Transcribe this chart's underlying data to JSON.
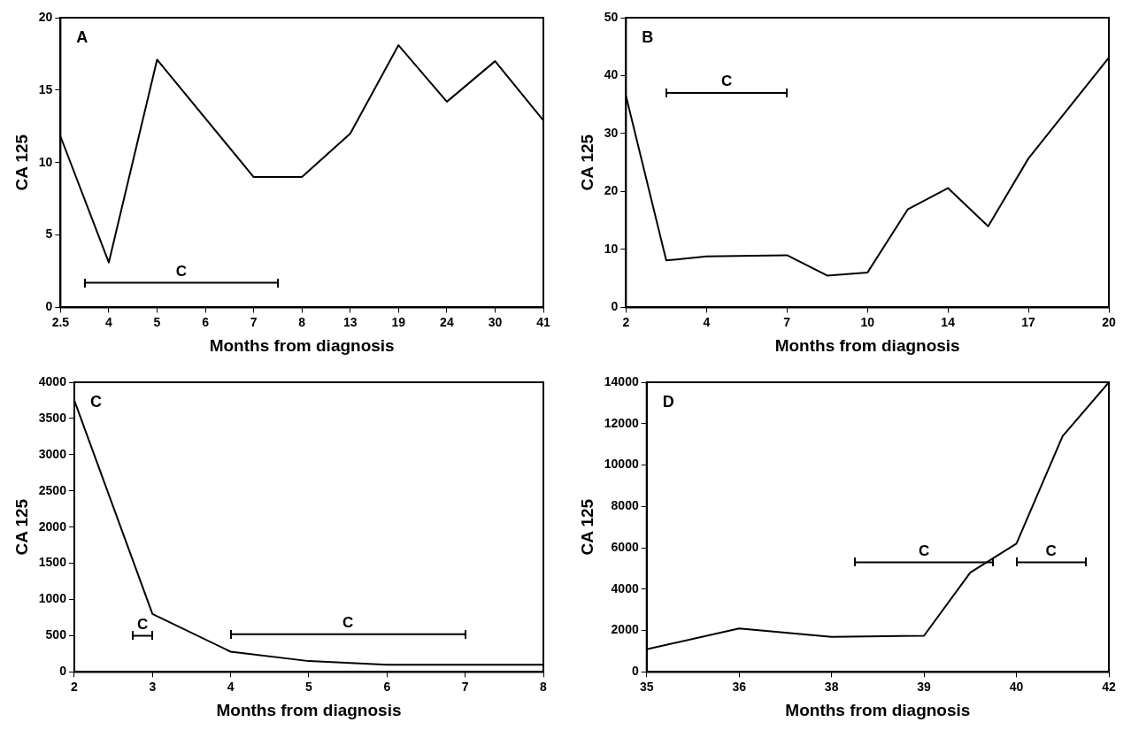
{
  "chart_data": [
    {
      "type": "line",
      "title": "A",
      "xlabel": "Months from diagnosis",
      "ylabel": "CA 125",
      "categories": [
        "2.5",
        null,
        "4",
        null,
        "5",
        null,
        "6",
        null,
        "7",
        null,
        "8",
        null,
        "13",
        null,
        "19",
        null,
        "24",
        null,
        "30",
        null,
        "41"
      ],
      "ylim": [
        0,
        20
      ],
      "yticks": [
        0,
        5,
        10,
        15,
        20
      ],
      "series": [
        {
          "color": "#000000",
          "marker": "none",
          "values": [
            11.8,
            null,
            3.1,
            null,
            17.1,
            null,
            null,
            null,
            9.0,
            null,
            9.0,
            null,
            12.0,
            null,
            18.1,
            null,
            14.2,
            null,
            17.0,
            null,
            12.9
          ]
        },
        {
          "name": "C",
          "color": "#000000",
          "marker": "none",
          "values": [
            null,
            1.7,
            null,
            null,
            null,
            null,
            null,
            null,
            null,
            1.7,
            null,
            null,
            null,
            null,
            null,
            null,
            null,
            null,
            null,
            null,
            null
          ]
        }
      ]
    },
    {
      "type": "line",
      "title": "B",
      "xlabel": "Months from diagnosis",
      "ylabel": "CA 125",
      "categories": [
        "2",
        null,
        "4",
        null,
        "7",
        null,
        "10",
        null,
        "14",
        null,
        "17",
        null,
        "20"
      ],
      "ylim": [
        0,
        50
      ],
      "yticks": [
        0,
        10,
        20,
        30,
        40,
        50
      ],
      "series": [
        {
          "color": "#000000",
          "marker": "none",
          "values": [
            36.5,
            8.1,
            8.8,
            null,
            9.0,
            5.5,
            6.0,
            16.9,
            20.6,
            14.0,
            25.7,
            null,
            43.1
          ]
        },
        {
          "name": "C",
          "color": "#000000",
          "marker": "none",
          "values": [
            null,
            37,
            null,
            null,
            37,
            null,
            null,
            null,
            null,
            null,
            null,
            null,
            null
          ]
        }
      ]
    },
    {
      "type": "line",
      "title": "C",
      "xlabel": "Months from diagnosis",
      "ylabel": "CA 125",
      "categories": [
        "2",
        null,
        null,
        null,
        "3",
        null,
        null,
        null,
        "4",
        null,
        null,
        null,
        "5",
        null,
        null,
        null,
        "6",
        null,
        null,
        null,
        "7",
        null,
        null,
        null,
        "8"
      ],
      "ylim": [
        0,
        4000
      ],
      "yticks": [
        0,
        500,
        1000,
        1500,
        2000,
        2500,
        3000,
        3500,
        4000
      ],
      "series": [
        {
          "color": "#000000",
          "marker": "none",
          "values": [
            3750,
            null,
            null,
            null,
            800,
            null,
            null,
            null,
            280,
            null,
            null,
            null,
            150,
            null,
            null,
            null,
            100,
            null,
            null,
            null,
            100,
            null,
            null,
            null,
            100
          ]
        },
        {
          "name": "C",
          "color": "#000000",
          "marker": "none",
          "values": [
            null,
            null,
            null,
            500,
            500,
            null,
            null,
            null,
            null,
            null,
            null,
            null,
            null,
            null,
            null,
            null,
            null,
            null,
            null,
            null,
            null,
            null,
            null,
            null,
            null
          ]
        },
        {
          "name": "C",
          "color": "#000000",
          "marker": "none",
          "values": [
            null,
            null,
            null,
            null,
            null,
            null,
            null,
            null,
            520,
            null,
            null,
            null,
            null,
            null,
            null,
            null,
            null,
            null,
            null,
            null,
            520,
            null,
            null,
            null,
            null
          ]
        }
      ]
    },
    {
      "type": "line",
      "title": "D",
      "xlabel": "Months from diagnosis",
      "ylabel": "CA 125",
      "categories": [
        "35",
        null,
        null,
        null,
        "36",
        null,
        null,
        null,
        "38",
        null,
        null,
        null,
        "39",
        null,
        null,
        null,
        "40",
        null,
        null,
        null,
        "42"
      ],
      "ylim": [
        0,
        14000
      ],
      "yticks": [
        0,
        2000,
        4000,
        6000,
        8000,
        10000,
        12000,
        14000
      ],
      "series": [
        {
          "color": "#000000",
          "marker": "none",
          "values": [
            1100,
            null,
            null,
            null,
            2100,
            null,
            null,
            null,
            1700,
            null,
            null,
            null,
            1750,
            null,
            4800,
            null,
            6200,
            null,
            11400,
            null,
            14000
          ]
        },
        {
          "name": "C",
          "color": "#000000",
          "marker": "none",
          "values": [
            null,
            null,
            null,
            null,
            null,
            null,
            null,
            null,
            null,
            5300,
            null,
            null,
            null,
            null,
            null,
            5300,
            null,
            null,
            null,
            null,
            null
          ]
        },
        {
          "name": "C",
          "color": "#000000",
          "marker": "none",
          "values": [
            null,
            null,
            null,
            null,
            null,
            null,
            null,
            null,
            null,
            null,
            null,
            null,
            null,
            null,
            null,
            null,
            5300,
            null,
            null,
            5300,
            null
          ]
        }
      ]
    }
  ]
}
